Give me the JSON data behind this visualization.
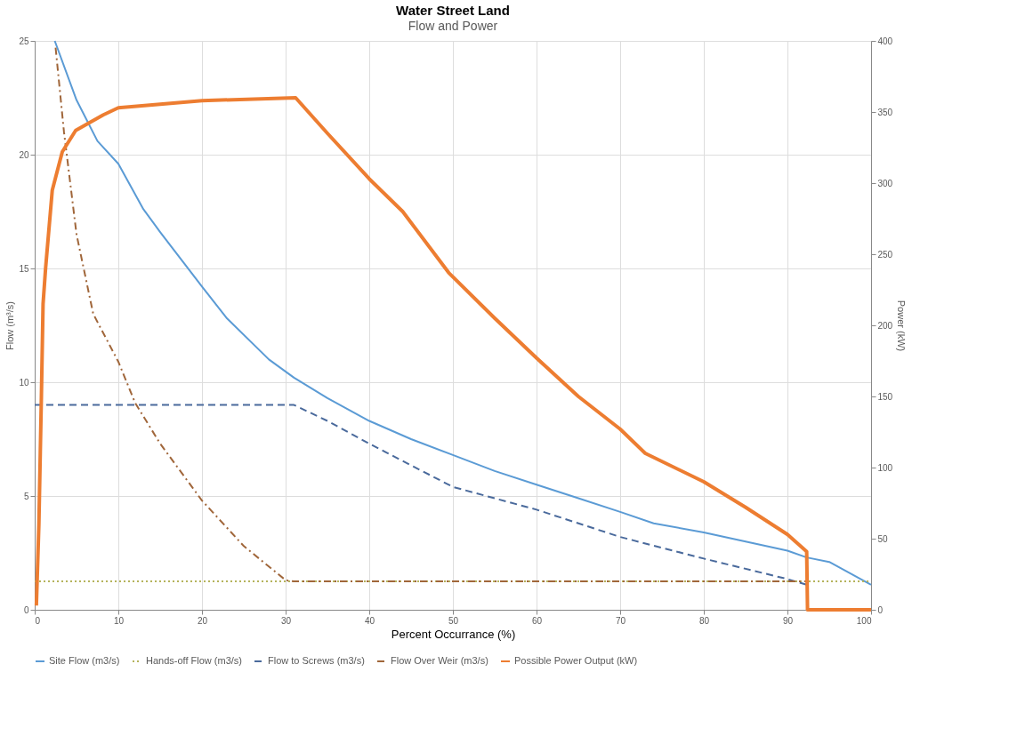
{
  "chart_data": {
    "type": "line",
    "title": "Water Street Land",
    "subtitle": "Flow and Power",
    "xlabel": "Percent Occurrance (%)",
    "ylabel": "Flow (m³/s)",
    "y2label": "Power (kW)",
    "xlim": [
      0,
      100
    ],
    "xticks": [
      0,
      10,
      20,
      30,
      40,
      50,
      60,
      70,
      80,
      90,
      100
    ],
    "ylim": [
      0,
      25
    ],
    "yticks": [
      0,
      5,
      10,
      15,
      20,
      25
    ],
    "y2lim": [
      0,
      400
    ],
    "y2ticks": [
      0,
      50,
      100,
      150,
      200,
      250,
      300,
      350,
      400
    ],
    "grid": true,
    "legend": "bottom",
    "series": [
      {
        "name": "Site Flow (m3/s)",
        "color": "#5b9bd5",
        "line_style": "solid",
        "x": [
          2.4,
          5,
          7.5,
          10,
          13,
          15,
          20,
          23,
          28,
          31,
          35,
          40,
          45,
          50,
          55,
          60,
          65,
          70,
          74,
          80,
          85,
          90,
          92.3,
          95,
          100
        ],
        "values": [
          25,
          22.4,
          20.6,
          19.6,
          17.6,
          16.6,
          14.2,
          12.8,
          11,
          10.2,
          9.3,
          8.3,
          7.5,
          6.8,
          6.1,
          5.5,
          4.9,
          4.3,
          3.8,
          3.4,
          3,
          2.6,
          2.3,
          2.1,
          1.1
        ]
      },
      {
        "name": "Hands-off Flow (m3/s)",
        "color": "#b5b35c",
        "line_style": "dotted",
        "x": [
          0,
          100
        ],
        "values": [
          1.25,
          1.25
        ]
      },
      {
        "name": "Flow to Screws (m3/s)",
        "color": "#4a6a9c",
        "line_style": "dashed",
        "x": [
          0,
          31,
          35,
          40,
          50,
          60,
          70,
          80,
          90,
          92.3
        ],
        "values": [
          9,
          9,
          8.3,
          7.3,
          5.4,
          4.4,
          3.2,
          2.25,
          1.35,
          1.1
        ]
      },
      {
        "name": "Flow Over Weir (m3/s)",
        "color": "#a0663a",
        "line_style": "dashdot",
        "x": [
          2.5,
          3.5,
          5,
          7,
          10,
          12,
          15,
          20,
          25,
          30,
          31,
          92.3
        ],
        "values": [
          24.7,
          21,
          16.5,
          13,
          10.9,
          9.1,
          7.3,
          4.8,
          2.8,
          1.3,
          1.25,
          1.25
        ]
      },
      {
        "name": "Possible Power Output (kW)",
        "color": "#ed7d31",
        "line_style": "solid",
        "axis": "y2",
        "x": [
          0.2,
          0.5,
          0.8,
          1,
          1.3,
          2.1,
          3.3,
          4.9,
          8.2,
          10,
          20,
          31.2,
          35,
          40,
          44,
          49.5,
          55,
          60,
          65,
          70,
          73,
          80,
          85,
          90,
          92.3,
          92.4,
          100
        ],
        "values": [
          3,
          60,
          150,
          215,
          240,
          295,
          322,
          337,
          348,
          353,
          358,
          360,
          335,
          303,
          280,
          237,
          205,
          177,
          150,
          127,
          110,
          90,
          72,
          53,
          41,
          0,
          0
        ]
      }
    ]
  }
}
